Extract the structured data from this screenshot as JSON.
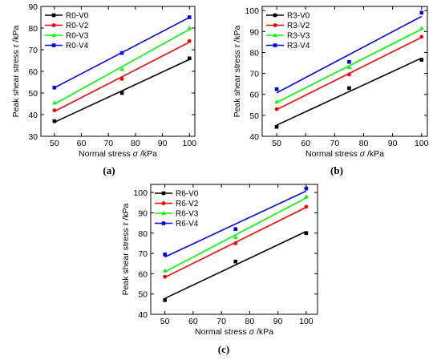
{
  "colors": {
    "V0": "#000000",
    "V2": "#ff0000",
    "V3": "#00ff00",
    "V4": "#0000ff"
  },
  "chart_data": [
    {
      "type": "scatter",
      "panel_label": "(a)",
      "xlabel_prefix": "Normal stress ",
      "xlabel_symbol": "σ",
      "xlabel_unit": " /kPa",
      "ylabel_prefix": "Peak shear stress ",
      "ylabel_symbol": "τ",
      "ylabel_unit": " /kPa",
      "xlim": [
        45,
        102
      ],
      "ylim": [
        30,
        90
      ],
      "xticks": [
        50,
        60,
        70,
        80,
        90,
        100
      ],
      "yticks": [
        30,
        40,
        50,
        60,
        70,
        80,
        90
      ],
      "legend_position": "top-left",
      "series": [
        {
          "name": "R0-V0",
          "color": "#000000",
          "marker": "square",
          "x": [
            50,
            75,
            100
          ],
          "y": [
            37,
            50,
            66
          ]
        },
        {
          "name": "R0-V2",
          "color": "#ff0000",
          "marker": "circle",
          "x": [
            50,
            75,
            100
          ],
          "y": [
            42,
            56.5,
            74
          ]
        },
        {
          "name": "R0-V3",
          "color": "#00ff00",
          "marker": "triangle",
          "x": [
            50,
            75,
            100
          ],
          "y": [
            45.5,
            61,
            80
          ]
        },
        {
          "name": "R0-V4",
          "color": "#0000ff",
          "marker": "square",
          "x": [
            50,
            75,
            100
          ],
          "y": [
            52.5,
            68.5,
            85
          ]
        }
      ]
    },
    {
      "type": "scatter",
      "panel_label": "(b)",
      "xlabel_prefix": "Normal stress ",
      "xlabel_symbol": "σ",
      "xlabel_unit": " /kPa",
      "ylabel_prefix": "Peak shear stress ",
      "ylabel_symbol": "τ",
      "ylabel_unit": " /kPa",
      "xlim": [
        45,
        102
      ],
      "ylim": [
        40,
        102
      ],
      "xticks": [
        50,
        60,
        70,
        80,
        90,
        100
      ],
      "yticks": [
        40,
        50,
        60,
        70,
        80,
        90,
        100
      ],
      "legend_position": "top-left",
      "series": [
        {
          "name": "R3-V0",
          "color": "#000000",
          "marker": "square",
          "x": [
            50,
            75,
            100
          ],
          "y": [
            44.5,
            63,
            76.5
          ]
        },
        {
          "name": "R3-V2",
          "color": "#ff0000",
          "marker": "circle",
          "x": [
            50,
            75,
            100
          ],
          "y": [
            53,
            69.5,
            87.5
          ]
        },
        {
          "name": "R3-V3",
          "color": "#00ff00",
          "marker": "triangle",
          "x": [
            50,
            75,
            100
          ],
          "y": [
            56.5,
            73,
            91.5
          ]
        },
        {
          "name": "R3-V4",
          "color": "#0000ff",
          "marker": "square",
          "x": [
            50,
            75,
            100
          ],
          "y": [
            62.5,
            75.5,
            99
          ]
        }
      ]
    },
    {
      "type": "scatter",
      "panel_label": "(c)",
      "xlabel_prefix": "Normal stress ",
      "xlabel_symbol": "σ",
      "xlabel_unit": " /kPa",
      "ylabel_prefix": "Peak shear stress ",
      "ylabel_symbol": "τ",
      "ylabel_unit": " /kPa",
      "xlim": [
        45,
        104
      ],
      "ylim": [
        40,
        104
      ],
      "xticks": [
        50,
        60,
        70,
        80,
        90,
        100
      ],
      "yticks": [
        40,
        50,
        60,
        70,
        80,
        90,
        100
      ],
      "legend_position": "top-left",
      "series": [
        {
          "name": "R6-V0",
          "color": "#000000",
          "marker": "square",
          "x": [
            50,
            75,
            100
          ],
          "y": [
            47,
            66,
            80
          ]
        },
        {
          "name": "R6-V2",
          "color": "#ff0000",
          "marker": "circle",
          "x": [
            50,
            75,
            100
          ],
          "y": [
            58.5,
            75,
            93
          ]
        },
        {
          "name": "R6-V3",
          "color": "#00ff00",
          "marker": "triangle",
          "x": [
            50,
            75,
            100
          ],
          "y": [
            61.5,
            78,
            98
          ]
        },
        {
          "name": "R6-V4",
          "color": "#0000ff",
          "marker": "square",
          "x": [
            50,
            75,
            100
          ],
          "y": [
            69.5,
            82,
            102
          ]
        }
      ]
    }
  ]
}
